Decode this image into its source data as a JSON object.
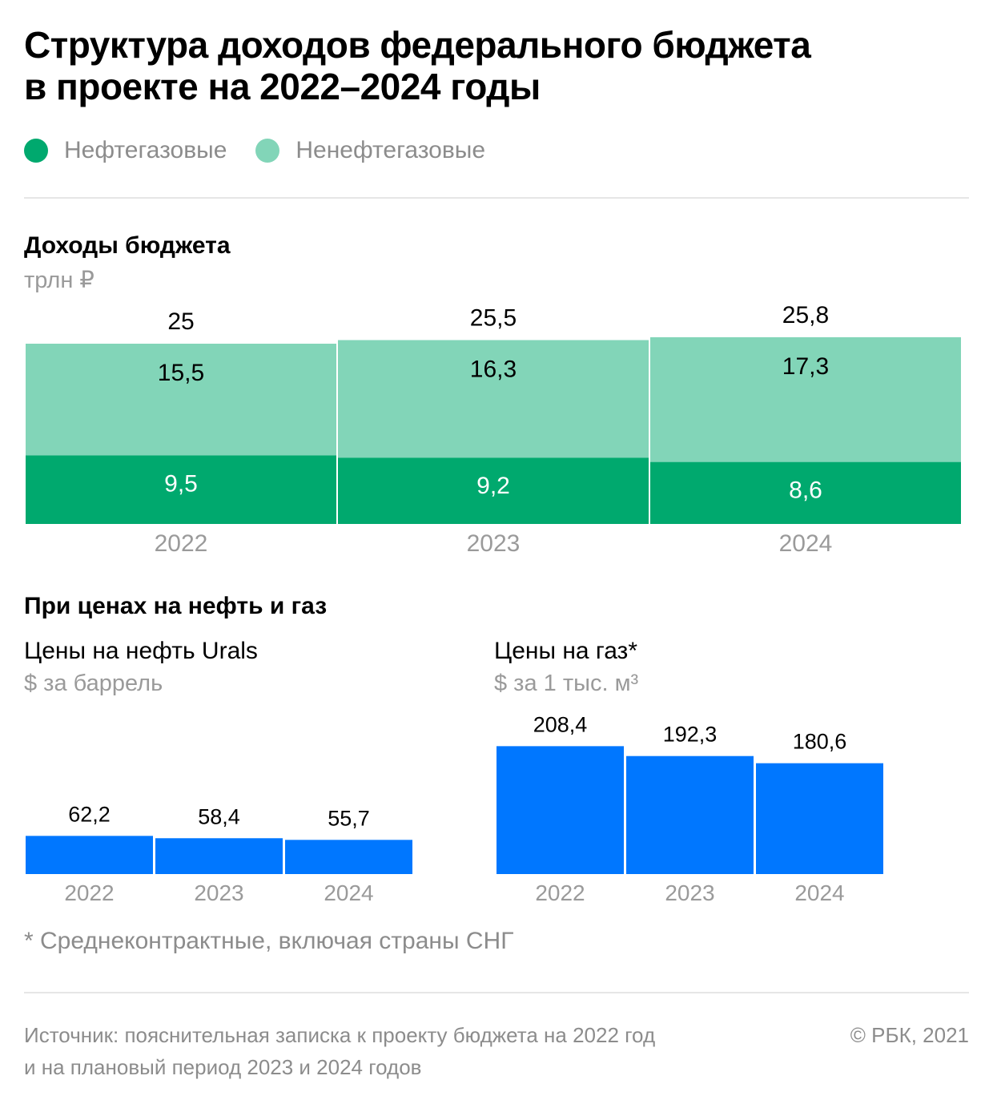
{
  "title_line1": "Структура доходов федерального бюджета",
  "title_line2": "в проекте на 2022–2024 годы",
  "legend": [
    {
      "label": "Нефтегазовые",
      "color": "#00a96e"
    },
    {
      "label": "Ненефтегазовые",
      "color": "#82d5b8"
    }
  ],
  "revenue": {
    "title": "Доходы бюджета",
    "unit": "трлн ₽"
  },
  "prices": {
    "title": "При ценах на нефть и газ"
  },
  "oil": {
    "title": "Цены на нефть Urals",
    "unit": "$ за баррель"
  },
  "gas": {
    "title": "Цены на газ*",
    "unit": "$ за 1 тыс. м³"
  },
  "footnote": "* Среднеконтрактные, включая страны СНГ",
  "source_line1": "Источник: пояснительная записка к проекту бюджета на 2022 год",
  "source_line2": "и на плановый период 2023 и 2024 годов",
  "copyright": "© РБК, 2021",
  "chart_data": [
    {
      "type": "bar",
      "stacked": true,
      "categories": [
        "2022",
        "2023",
        "2024"
      ],
      "series": [
        {
          "name": "Нефтегазовые",
          "values": [
            9.5,
            9.2,
            8.6
          ],
          "labels": [
            "9,5",
            "9,2",
            "8,6"
          ],
          "color": "#00a96e"
        },
        {
          "name": "Ненефтегазовые",
          "values": [
            15.5,
            16.3,
            17.3
          ],
          "labels": [
            "15,5",
            "16,3",
            "17,3"
          ],
          "color": "#82d5b8"
        }
      ],
      "totals": [
        25,
        25.5,
        25.8
      ],
      "total_labels": [
        "25",
        "25,5",
        "25,8"
      ],
      "title": "Доходы бюджета",
      "ylabel": "трлн ₽"
    },
    {
      "type": "bar",
      "categories": [
        "2022",
        "2023",
        "2024"
      ],
      "values": [
        62.2,
        58.4,
        55.7
      ],
      "labels": [
        "62,2",
        "58,4",
        "55,7"
      ],
      "color": "#0077ff",
      "title": "Цены на нефть Urals",
      "ylabel": "$ за баррель"
    },
    {
      "type": "bar",
      "categories": [
        "2022",
        "2023",
        "2024"
      ],
      "values": [
        208.4,
        192.3,
        180.6
      ],
      "labels": [
        "208,4",
        "192,3",
        "180,6"
      ],
      "color": "#0077ff",
      "title": "Цены на газ*",
      "ylabel": "$ за 1 тыс. м³"
    }
  ]
}
